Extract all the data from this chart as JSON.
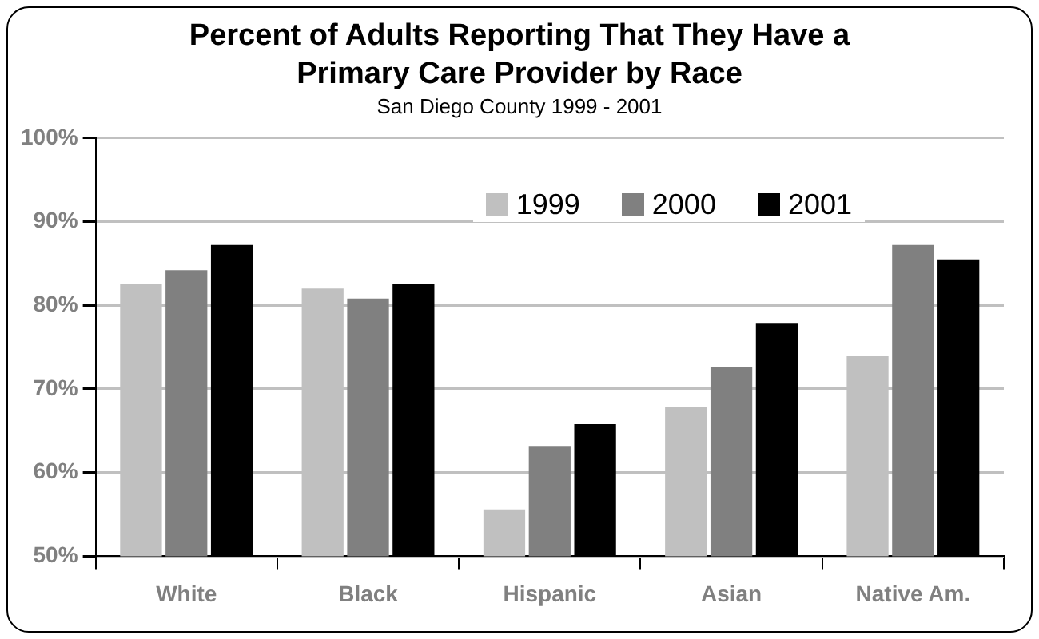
{
  "chart_data": {
    "type": "bar",
    "title": "Percent of Adults Reporting That They Have a Primary Care Provider by Race",
    "subtitle": "San Diego County 1999 - 2001",
    "categories": [
      "White",
      "Black",
      "Hispanic",
      "Asian",
      "Native Am."
    ],
    "series": [
      {
        "name": "1999",
        "color": "#c0c0c0",
        "values": [
          82.5,
          82.0,
          55.6,
          67.9,
          73.9
        ]
      },
      {
        "name": "2000",
        "color": "#808080",
        "values": [
          84.2,
          80.8,
          63.2,
          72.6,
          87.2
        ]
      },
      {
        "name": "2001",
        "color": "#000000",
        "values": [
          87.2,
          82.5,
          65.8,
          77.8,
          85.5
        ]
      }
    ],
    "ylim": [
      50,
      100
    ],
    "yticks": [
      {
        "value": 50,
        "label": "50%"
      },
      {
        "value": 60,
        "label": "60%"
      },
      {
        "value": 70,
        "label": "70%"
      },
      {
        "value": 80,
        "label": "80%"
      },
      {
        "value": 90,
        "label": "90%"
      },
      {
        "value": 100,
        "label": "100%"
      }
    ],
    "grid": "y",
    "legend": "top right"
  }
}
